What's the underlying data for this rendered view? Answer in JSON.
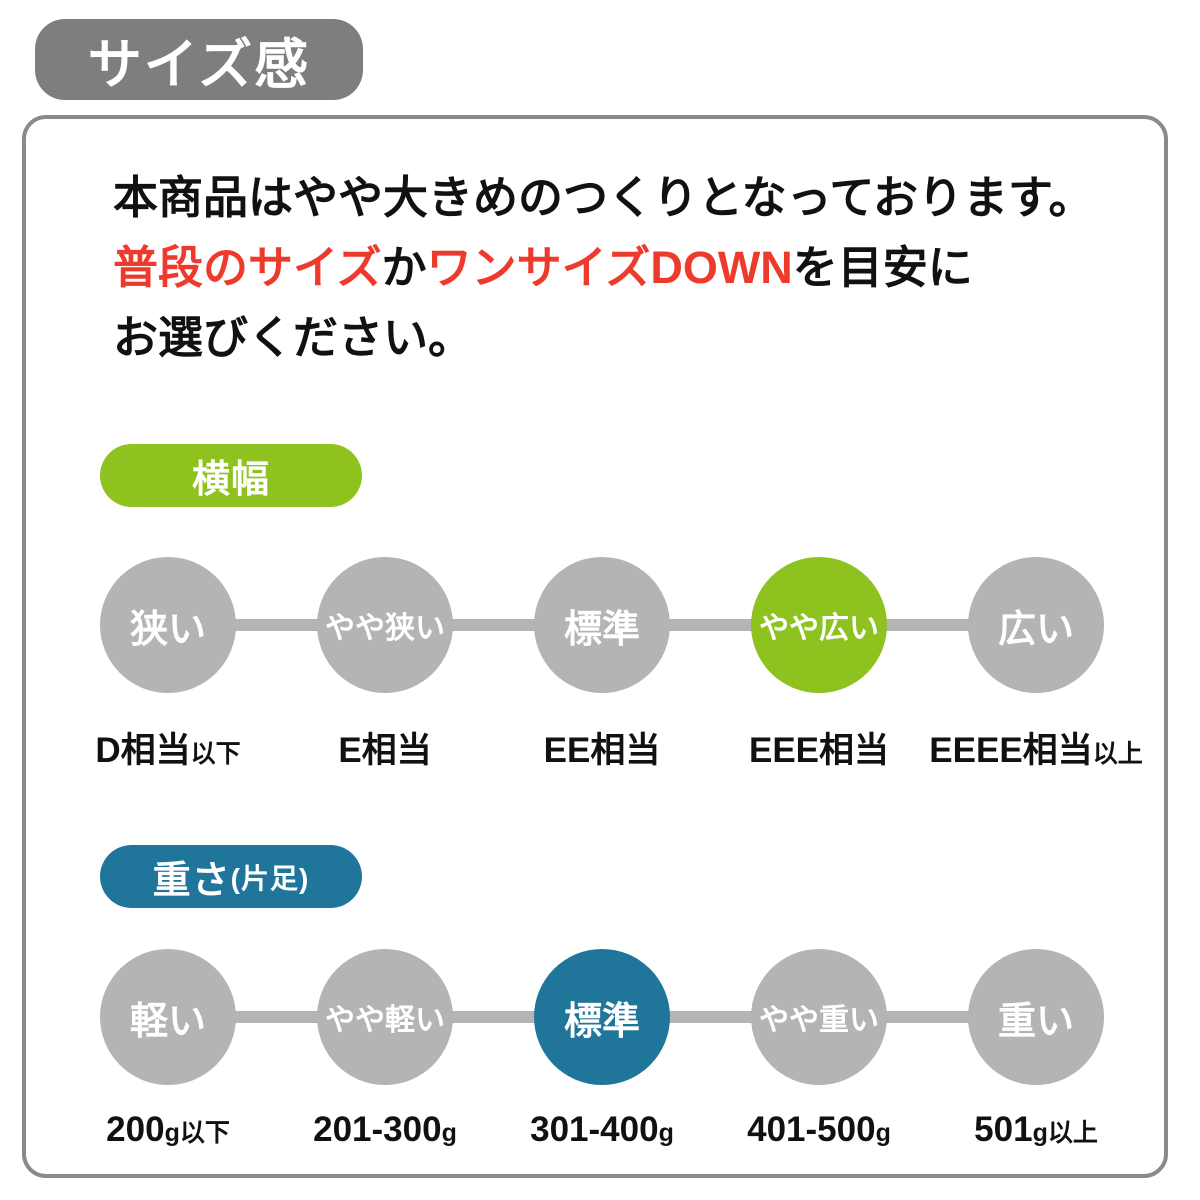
{
  "header": {
    "title": "サイズ感"
  },
  "intro": {
    "line1": "本商品はやや大きめのつくりとなっております。",
    "line2": [
      {
        "text": "普段のサイズ",
        "emphasis": true
      },
      {
        "text": "か",
        "emphasis": false
      },
      {
        "text": "ワンサイズDOWN",
        "emphasis": true
      },
      {
        "text": "を目安に",
        "emphasis": false
      }
    ],
    "line3": "お選びください。"
  },
  "width_scale": {
    "badge": "横幅",
    "selected": "やや広い",
    "selected_index": 3,
    "levels": [
      {
        "name": "狭い",
        "value": "D相当",
        "note": "以下",
        "active": false
      },
      {
        "name": "やや狭い",
        "value": "E相当",
        "note": "",
        "active": false
      },
      {
        "name": "標準",
        "value": "EE相当",
        "note": "",
        "active": false
      },
      {
        "name": "やや広い",
        "value": "EEE相当",
        "note": "",
        "active": true
      },
      {
        "name": "広い",
        "value": "EEEE相当",
        "note": "以上",
        "active": false
      }
    ]
  },
  "weight_scale": {
    "badge": "重さ",
    "badge_note": "(片足)",
    "selected": "標準",
    "selected_index": 2,
    "levels": [
      {
        "name": "軽い",
        "value": "200",
        "note": "g以下",
        "active": false
      },
      {
        "name": "やや軽い",
        "value": "201-300",
        "note": "g",
        "active": false
      },
      {
        "name": "標準",
        "value": "301-400",
        "note": "g",
        "active": true
      },
      {
        "name": "やや重い",
        "value": "401-500",
        "note": "g",
        "active": false
      },
      {
        "name": "重い",
        "value": "501",
        "note": "g以上",
        "active": false
      }
    ]
  },
  "colors": {
    "green": "#8dc21f",
    "teal": "#20759a",
    "circle_gray": "#b4b4b4",
    "badge_gray": "#7e7e7e",
    "border_gray": "#8a8a8a",
    "red": "#ee3a2c"
  }
}
